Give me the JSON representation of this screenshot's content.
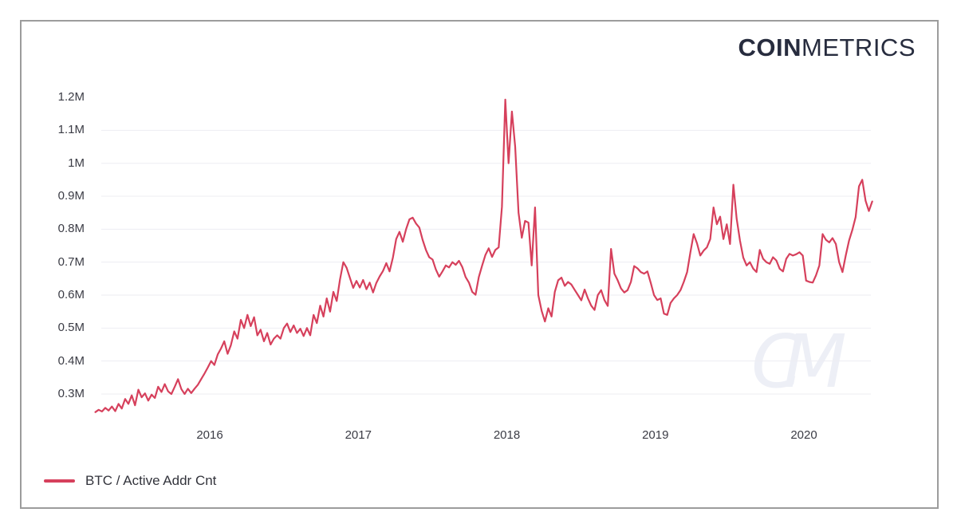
{
  "brand": {
    "logo_bold": "COIN",
    "logo_light": "METRICS",
    "watermark": "CM"
  },
  "legend": {
    "label": "BTC / Active Addr Cnt"
  },
  "colors": {
    "line": "#d6405c",
    "grid": "#ededf2",
    "axis_text": "#3b3c45",
    "logo": "#272c3e",
    "card_border": "#9c9c9c",
    "watermark": "#edeff6"
  },
  "chart_data": {
    "type": "line",
    "title": "",
    "xlabel": "",
    "ylabel": "",
    "grid": true,
    "legend_position": "bottom-left",
    "x_ticks": [
      {
        "label": "2016",
        "t": 2016
      },
      {
        "label": "2017",
        "t": 2017
      },
      {
        "label": "2018",
        "t": 2018
      },
      {
        "label": "2019",
        "t": 2019
      },
      {
        "label": "2020",
        "t": 2020
      }
    ],
    "y_ticks": [
      {
        "label": "1.2M",
        "value": 1.2,
        "gridline": false
      },
      {
        "label": "1.1M",
        "value": 1.1,
        "gridline": true
      },
      {
        "label": "1M",
        "value": 1.0,
        "gridline": true
      },
      {
        "label": "0.9M",
        "value": 0.9,
        "gridline": true
      },
      {
        "label": "0.8M",
        "value": 0.8,
        "gridline": true
      },
      {
        "label": "0.7M",
        "value": 0.7,
        "gridline": true
      },
      {
        "label": "0.6M",
        "value": 0.6,
        "gridline": true
      },
      {
        "label": "0.5M",
        "value": 0.5,
        "gridline": true
      },
      {
        "label": "0.4M",
        "value": 0.4,
        "gridline": true
      },
      {
        "label": "0.3M",
        "value": 0.3,
        "gridline": true
      }
    ],
    "xlim": [
      2015.18,
      2020.52
    ],
    "ylim": [
      0.24,
      1.25
    ],
    "series": [
      {
        "name": "BTC / Active Addr Cnt",
        "color": "#d6405c",
        "unit": "millions of addresses",
        "t_start": 2015.23,
        "t_end": 2020.46,
        "values_millions": [
          0.245,
          0.252,
          0.247,
          0.258,
          0.25,
          0.262,
          0.248,
          0.27,
          0.256,
          0.285,
          0.27,
          0.296,
          0.266,
          0.313,
          0.29,
          0.302,
          0.28,
          0.298,
          0.288,
          0.322,
          0.306,
          0.33,
          0.308,
          0.3,
          0.322,
          0.345,
          0.315,
          0.3,
          0.316,
          0.303,
          0.316,
          0.328,
          0.345,
          0.362,
          0.38,
          0.4,
          0.388,
          0.42,
          0.438,
          0.46,
          0.422,
          0.448,
          0.49,
          0.468,
          0.525,
          0.5,
          0.54,
          0.506,
          0.533,
          0.478,
          0.495,
          0.46,
          0.485,
          0.45,
          0.468,
          0.478,
          0.468,
          0.5,
          0.514,
          0.488,
          0.508,
          0.485,
          0.498,
          0.476,
          0.5,
          0.478,
          0.54,
          0.515,
          0.568,
          0.535,
          0.59,
          0.55,
          0.61,
          0.582,
          0.647,
          0.7,
          0.683,
          0.652,
          0.622,
          0.643,
          0.623,
          0.646,
          0.618,
          0.638,
          0.608,
          0.637,
          0.657,
          0.673,
          0.697,
          0.672,
          0.713,
          0.77,
          0.792,
          0.762,
          0.8,
          0.83,
          0.835,
          0.817,
          0.805,
          0.768,
          0.737,
          0.715,
          0.708,
          0.678,
          0.656,
          0.672,
          0.69,
          0.684,
          0.7,
          0.692,
          0.704,
          0.685,
          0.655,
          0.638,
          0.61,
          0.601,
          0.655,
          0.69,
          0.722,
          0.742,
          0.716,
          0.737,
          0.745,
          0.868,
          1.193,
          1.0,
          1.157,
          1.05,
          0.85,
          0.774,
          0.825,
          0.82,
          0.69,
          0.866,
          0.6,
          0.552,
          0.52,
          0.56,
          0.535,
          0.61,
          0.645,
          0.653,
          0.628,
          0.64,
          0.632,
          0.616,
          0.6,
          0.584,
          0.617,
          0.59,
          0.568,
          0.555,
          0.6,
          0.615,
          0.585,
          0.567,
          0.74,
          0.665,
          0.645,
          0.62,
          0.608,
          0.615,
          0.64,
          0.688,
          0.681,
          0.67,
          0.665,
          0.672,
          0.637,
          0.6,
          0.585,
          0.59,
          0.544,
          0.54,
          0.576,
          0.59,
          0.6,
          0.615,
          0.64,
          0.67,
          0.73,
          0.785,
          0.757,
          0.72,
          0.735,
          0.745,
          0.77,
          0.866,
          0.815,
          0.838,
          0.77,
          0.815,
          0.755,
          0.935,
          0.832,
          0.765,
          0.714,
          0.69,
          0.7,
          0.68,
          0.67,
          0.737,
          0.71,
          0.7,
          0.695,
          0.715,
          0.705,
          0.68,
          0.672,
          0.71,
          0.725,
          0.72,
          0.724,
          0.73,
          0.72,
          0.644,
          0.64,
          0.638,
          0.66,
          0.69,
          0.785,
          0.768,
          0.76,
          0.773,
          0.755,
          0.7,
          0.67,
          0.72,
          0.766,
          0.798,
          0.837,
          0.93,
          0.95,
          0.886,
          0.855,
          0.884
        ]
      }
    ]
  }
}
